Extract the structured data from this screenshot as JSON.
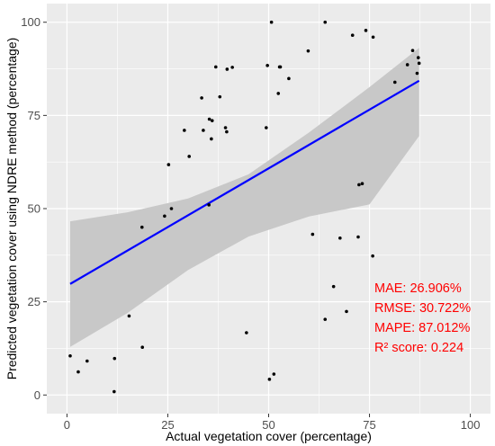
{
  "chart_data": {
    "type": "scatter",
    "title": "",
    "xlabel": "Actual vegetation cover (percentage)",
    "ylabel": "Predicted vegetation cover using NDRE method (percentage)",
    "xlim": [
      -5,
      105
    ],
    "ylim": [
      -5,
      105
    ],
    "x_ticks": [
      "0",
      "25",
      "50",
      "75",
      "100"
    ],
    "y_ticks": [
      "0",
      "25",
      "50",
      "75",
      "100"
    ],
    "x_tick_values": [
      0,
      25,
      50,
      75,
      100
    ],
    "y_tick_values": [
      0,
      25,
      50,
      75,
      100
    ],
    "grid": true,
    "points": [
      [
        0.8,
        10.5
      ],
      [
        2.8,
        6.2
      ],
      [
        5,
        9.1
      ],
      [
        11.7,
        0.9
      ],
      [
        11.8,
        9.8
      ],
      [
        15.4,
        21.2
      ],
      [
        18.6,
        45
      ],
      [
        18.7,
        12.8
      ],
      [
        24.2,
        48
      ],
      [
        25.2,
        61.8
      ],
      [
        25.9,
        50
      ],
      [
        29.1,
        71
      ],
      [
        30.3,
        64
      ],
      [
        33.4,
        79.7
      ],
      [
        33.8,
        71
      ],
      [
        35.2,
        51
      ],
      [
        35.3,
        74
      ],
      [
        35.8,
        68.7
      ],
      [
        36,
        73.6
      ],
      [
        36.9,
        88
      ],
      [
        37.9,
        80
      ],
      [
        39.3,
        71.7
      ],
      [
        39.6,
        70.6
      ],
      [
        39.7,
        87.4
      ],
      [
        41,
        87.9
      ],
      [
        44.5,
        16.7
      ],
      [
        49.4,
        71.7
      ],
      [
        49.7,
        88.4
      ],
      [
        50.2,
        4.2
      ],
      [
        50.7,
        100
      ],
      [
        51.3,
        5.6
      ],
      [
        52.4,
        80.9
      ],
      [
        52.7,
        88
      ],
      [
        52.9,
        88
      ],
      [
        55,
        84.9
      ],
      [
        59.8,
        92.3
      ],
      [
        60.9,
        43.1
      ],
      [
        64,
        100
      ],
      [
        64,
        20.3
      ],
      [
        66.1,
        29.1
      ],
      [
        67.7,
        42.1
      ],
      [
        69.3,
        22.4
      ],
      [
        70.8,
        96.5
      ],
      [
        72.2,
        42.4
      ],
      [
        72.4,
        56.4
      ],
      [
        73.2,
        56.7
      ],
      [
        74.1,
        97.8
      ],
      [
        75.8,
        37.3
      ],
      [
        75.9,
        96
      ],
      [
        81.3,
        83.9
      ],
      [
        84.4,
        88.6
      ],
      [
        85.7,
        92.4
      ],
      [
        86.8,
        86.3
      ],
      [
        87.1,
        90.5
      ],
      [
        87.3,
        89
      ]
    ],
    "fit_line": {
      "x": [
        0.8,
        87.3
      ],
      "y": [
        29.8,
        84.3
      ],
      "color": "#0000ff"
    },
    "confidence_band": {
      "x": [
        0.8,
        15,
        30,
        45,
        60,
        75,
        87.3
      ],
      "upper": [
        46.6,
        49,
        52.7,
        59.2,
        70.4,
        82.6,
        93.1
      ],
      "lower": [
        12.9,
        22,
        33.5,
        42.5,
        47.9,
        51.1,
        69.5
      ],
      "color": "#c8c8c8"
    },
    "panel_background": "#ebebeb",
    "point_color": "#000000",
    "annotation_color": "#ff0000",
    "annotations": [
      "MAE: 26.906%",
      "RMSE: 30.722%",
      "MAPE: 87.012%",
      "R² score: 0.224"
    ]
  }
}
